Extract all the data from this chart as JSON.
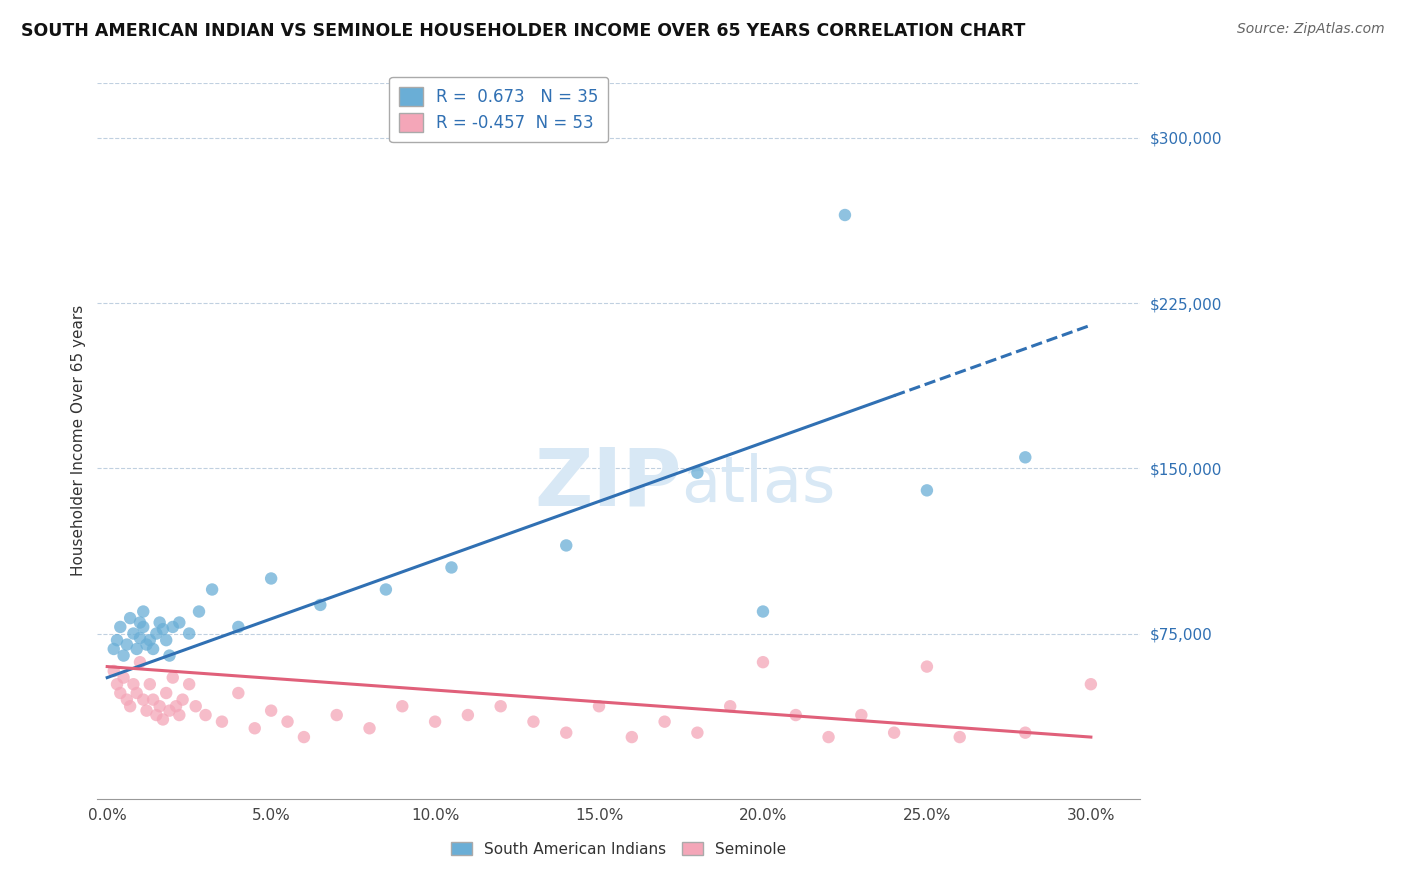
{
  "title": "SOUTH AMERICAN INDIAN VS SEMINOLE HOUSEHOLDER INCOME OVER 65 YEARS CORRELATION CHART",
  "source": "Source: ZipAtlas.com",
  "ylabel": "Householder Income Over 65 years",
  "xlabel_ticks": [
    "0.0%",
    "5.0%",
    "10.0%",
    "15.0%",
    "20.0%",
    "25.0%",
    "30.0%"
  ],
  "xlabel_values": [
    0.0,
    5.0,
    10.0,
    15.0,
    20.0,
    25.0,
    30.0
  ],
  "ytick_labels": [
    "$75,000",
    "$150,000",
    "$225,000",
    "$300,000"
  ],
  "ytick_values": [
    75000,
    150000,
    225000,
    300000
  ],
  "ylim": [
    0,
    325000
  ],
  "xlim": [
    -0.3,
    31.5
  ],
  "blue_R": 0.673,
  "blue_N": 35,
  "pink_R": -0.457,
  "pink_N": 53,
  "blue_color": "#6aaed6",
  "pink_color": "#f4a6b8",
  "blue_line_color": "#3070b3",
  "pink_line_color": "#e0607a",
  "watermark_color": "#d8e8f5",
  "background_color": "#ffffff",
  "grid_color": "#c0d0e0",
  "blue_scatter_x": [
    0.2,
    0.3,
    0.4,
    0.5,
    0.6,
    0.7,
    0.8,
    0.9,
    1.0,
    1.0,
    1.1,
    1.1,
    1.2,
    1.3,
    1.4,
    1.5,
    1.6,
    1.7,
    1.8,
    1.9,
    2.0,
    2.2,
    2.5,
    2.8,
    3.2,
    4.0,
    5.0,
    6.5,
    8.5,
    10.5,
    14.0,
    18.0,
    20.0,
    25.0,
    28.0
  ],
  "blue_scatter_y": [
    68000,
    72000,
    78000,
    65000,
    70000,
    82000,
    75000,
    68000,
    80000,
    73000,
    85000,
    78000,
    70000,
    72000,
    68000,
    75000,
    80000,
    77000,
    72000,
    65000,
    78000,
    80000,
    75000,
    85000,
    95000,
    78000,
    100000,
    88000,
    95000,
    105000,
    115000,
    148000,
    85000,
    140000,
    155000
  ],
  "pink_scatter_x": [
    0.2,
    0.3,
    0.4,
    0.5,
    0.6,
    0.7,
    0.8,
    0.9,
    1.0,
    1.1,
    1.2,
    1.3,
    1.4,
    1.5,
    1.6,
    1.7,
    1.8,
    1.9,
    2.0,
    2.1,
    2.2,
    2.3,
    2.5,
    2.7,
    3.0,
    3.5,
    4.0,
    4.5,
    5.0,
    5.5,
    6.0,
    7.0,
    8.0,
    9.0,
    10.0,
    11.0,
    12.0,
    13.0,
    14.0,
    15.0,
    16.0,
    17.0,
    18.0,
    19.0,
    20.0,
    21.0,
    22.0,
    23.0,
    24.0,
    25.0,
    26.0,
    28.0,
    30.0
  ],
  "pink_scatter_y": [
    58000,
    52000,
    48000,
    55000,
    45000,
    42000,
    52000,
    48000,
    62000,
    45000,
    40000,
    52000,
    45000,
    38000,
    42000,
    36000,
    48000,
    40000,
    55000,
    42000,
    38000,
    45000,
    52000,
    42000,
    38000,
    35000,
    48000,
    32000,
    40000,
    35000,
    28000,
    38000,
    32000,
    42000,
    35000,
    38000,
    42000,
    35000,
    30000,
    42000,
    28000,
    35000,
    30000,
    42000,
    62000,
    38000,
    28000,
    38000,
    30000,
    60000,
    28000,
    30000,
    52000
  ],
  "blue_outlier_x": 22.5,
  "blue_outlier_y": 265000,
  "blue_trend_x0": 0.0,
  "blue_trend_y0": 55000,
  "blue_trend_x1": 30.0,
  "blue_trend_y1": 215000,
  "blue_solid_end": 24.0,
  "pink_trend_x0": 0.0,
  "pink_trend_y0": 60000,
  "pink_trend_x1": 30.0,
  "pink_trend_y1": 28000,
  "title_fontsize": 12.5,
  "source_fontsize": 10,
  "legend_fontsize": 12,
  "axis_label_fontsize": 11,
  "tick_fontsize": 11,
  "dot_size": 80
}
